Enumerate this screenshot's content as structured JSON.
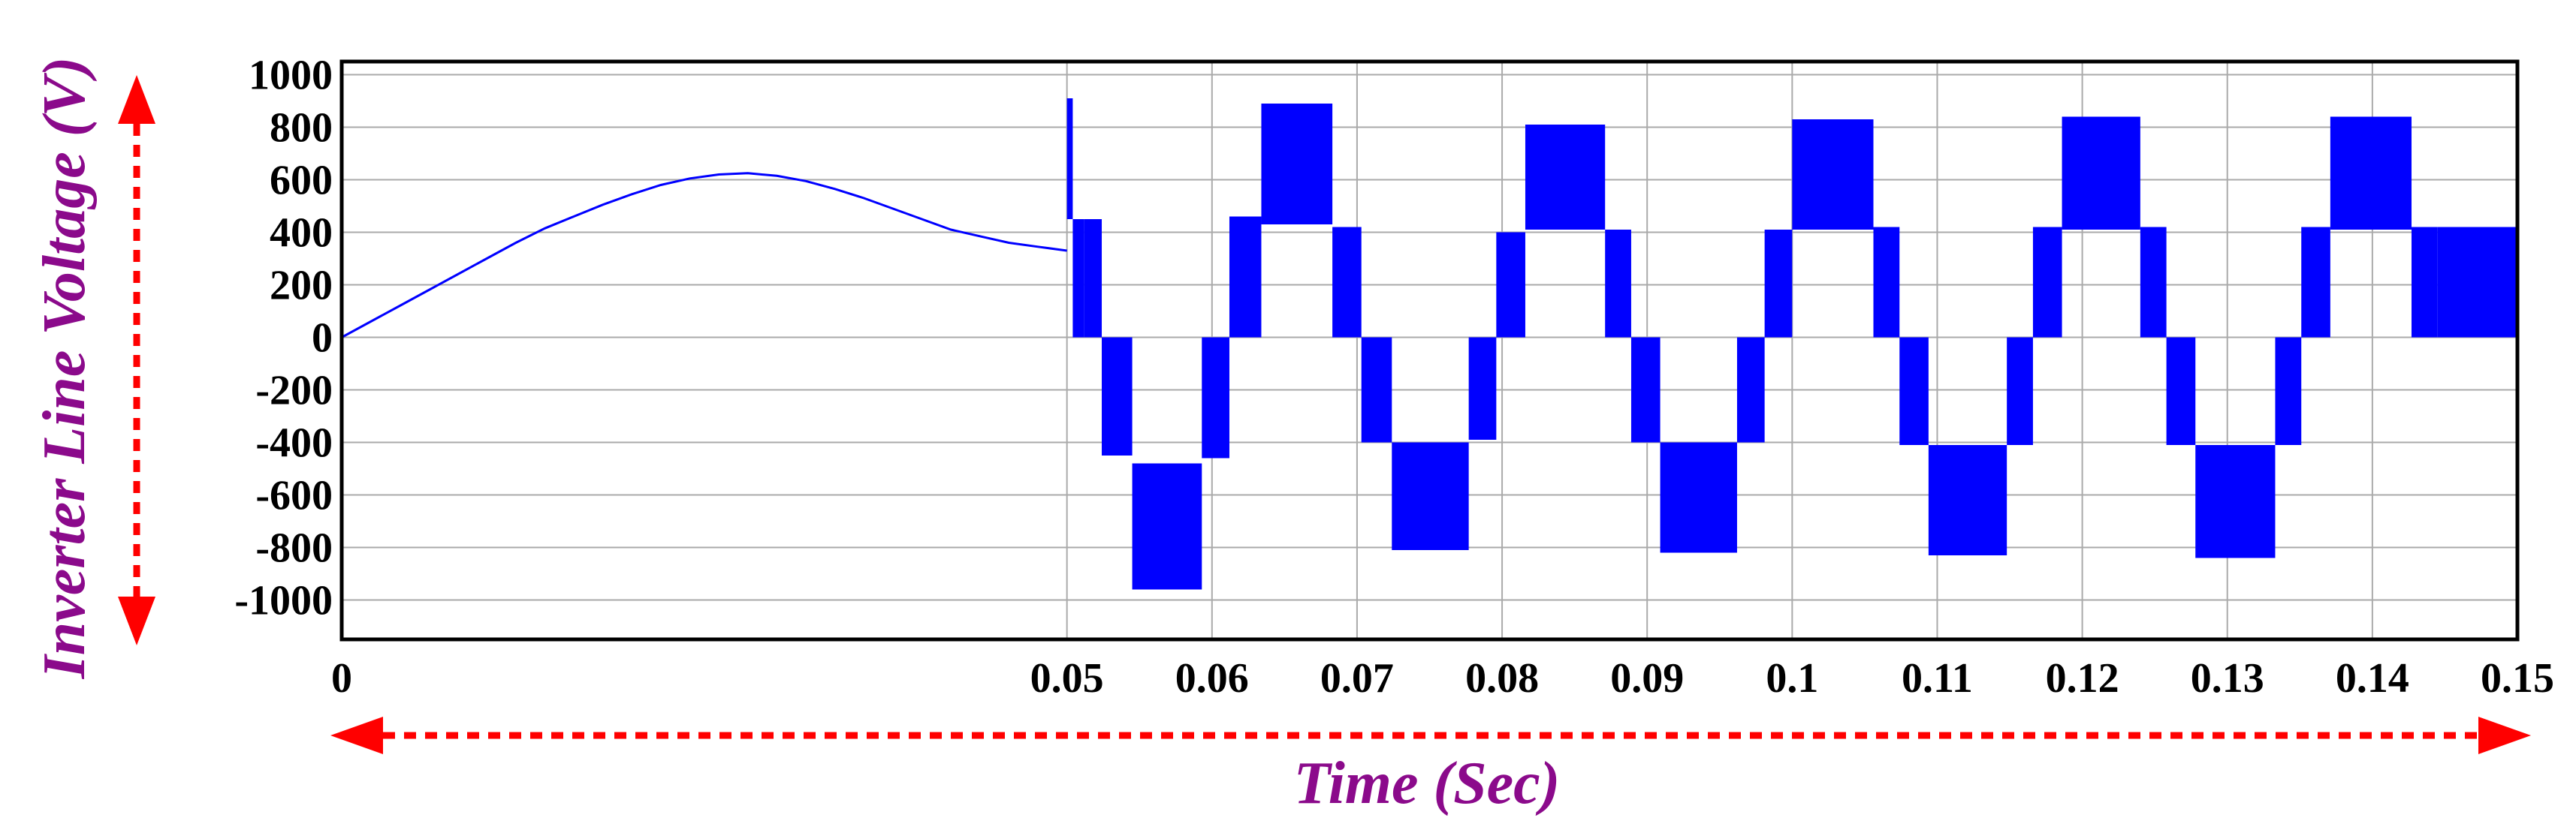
{
  "chart_data": {
    "type": "line",
    "title": "",
    "xlabel": "Time (Sec)",
    "ylabel": "Inverter Line Voltage (V)",
    "xlim": [
      0,
      0.15
    ],
    "ylim": [
      -1150,
      1050
    ],
    "x_ticks": [
      "0",
      "0.05",
      "0.06",
      "0.07",
      "0.08",
      "0.09",
      "0.1",
      "0.11",
      "0.12",
      "0.13",
      "0.14",
      "0.15"
    ],
    "x_tick_values": [
      0,
      0.05,
      0.06,
      0.07,
      0.08,
      0.09,
      0.1,
      0.11,
      0.12,
      0.13,
      0.14,
      0.15
    ],
    "y_ticks": [
      "1000",
      "800",
      "600",
      "400",
      "200",
      "0",
      "-200",
      "-400",
      "-600",
      "-800",
      "-1000"
    ],
    "y_tick_values": [
      1000,
      800,
      600,
      400,
      200,
      0,
      -200,
      -400,
      -600,
      -800,
      -1000
    ],
    "grid": true,
    "series": [
      {
        "color": "#0000ff",
        "startup_curve": {
          "x": [
            0,
            0.002,
            0.004,
            0.006,
            0.008,
            0.01,
            0.012,
            0.014,
            0.016,
            0.018,
            0.02,
            0.022,
            0.024,
            0.026,
            0.028,
            0.03,
            0.032,
            0.034,
            0.036,
            0.038,
            0.04,
            0.042,
            0.044,
            0.046,
            0.048,
            0.05
          ],
          "y": [
            0,
            60,
            120,
            180,
            240,
            300,
            360,
            415,
            460,
            505,
            545,
            580,
            605,
            620,
            625,
            615,
            595,
            565,
            530,
            490,
            450,
            410,
            385,
            360,
            345,
            330
          ]
        },
        "pwm_blocks": [
          {
            "x_start": 0.05,
            "x_end": 0.0504,
            "y_low": 450,
            "y_high": 910
          },
          {
            "x_start": 0.0504,
            "x_end": 0.0512,
            "y_low": 0,
            "y_high": 450
          },
          {
            "x_start": 0.0512,
            "x_end": 0.0524,
            "y_low": 0,
            "y_high": 450
          },
          {
            "x_start": 0.0524,
            "x_end": 0.0545,
            "y_low": -450,
            "y_high": 0
          },
          {
            "x_start": 0.0545,
            "x_end": 0.0593,
            "y_low": -960,
            "y_high": -480
          },
          {
            "x_start": 0.0593,
            "x_end": 0.0612,
            "y_low": -460,
            "y_high": 0
          },
          {
            "x_start": 0.0612,
            "x_end": 0.0634,
            "y_low": 0,
            "y_high": 460
          },
          {
            "x_start": 0.0634,
            "x_end": 0.0683,
            "y_low": 430,
            "y_high": 890
          },
          {
            "x_start": 0.0683,
            "x_end": 0.0703,
            "y_low": 0,
            "y_high": 420
          },
          {
            "x_start": 0.0703,
            "x_end": 0.0724,
            "y_low": -400,
            "y_high": 0
          },
          {
            "x_start": 0.0724,
            "x_end": 0.0777,
            "y_low": -810,
            "y_high": -400
          },
          {
            "x_start": 0.0777,
            "x_end": 0.0796,
            "y_low": -390,
            "y_high": 0
          },
          {
            "x_start": 0.0796,
            "x_end": 0.0816,
            "y_low": 0,
            "y_high": 400
          },
          {
            "x_start": 0.0816,
            "x_end": 0.0871,
            "y_low": 410,
            "y_high": 810
          },
          {
            "x_start": 0.0871,
            "x_end": 0.0889,
            "y_low": 0,
            "y_high": 410
          },
          {
            "x_start": 0.0889,
            "x_end": 0.0909,
            "y_low": -400,
            "y_high": 0
          },
          {
            "x_start": 0.0909,
            "x_end": 0.0962,
            "y_low": -820,
            "y_high": -400
          },
          {
            "x_start": 0.0962,
            "x_end": 0.0981,
            "y_low": -400,
            "y_high": 0
          },
          {
            "x_start": 0.0981,
            "x_end": 0.1,
            "y_low": 0,
            "y_high": 410
          },
          {
            "x_start": 0.1,
            "x_end": 0.1056,
            "y_low": 410,
            "y_high": 830
          },
          {
            "x_start": 0.1056,
            "x_end": 0.1074,
            "y_low": 0,
            "y_high": 420
          },
          {
            "x_start": 0.1074,
            "x_end": 0.1094,
            "y_low": -410,
            "y_high": 0
          },
          {
            "x_start": 0.1094,
            "x_end": 0.1148,
            "y_low": -830,
            "y_high": -410
          },
          {
            "x_start": 0.1148,
            "x_end": 0.1166,
            "y_low": -410,
            "y_high": 0
          },
          {
            "x_start": 0.1166,
            "x_end": 0.1186,
            "y_low": 0,
            "y_high": 420
          },
          {
            "x_start": 0.1186,
            "x_end": 0.124,
            "y_low": 410,
            "y_high": 840
          },
          {
            "x_start": 0.124,
            "x_end": 0.1258,
            "y_low": 0,
            "y_high": 420
          },
          {
            "x_start": 0.1258,
            "x_end": 0.1278,
            "y_low": -410,
            "y_high": 0
          },
          {
            "x_start": 0.1278,
            "x_end": 0.1333,
            "y_low": -840,
            "y_high": -410
          },
          {
            "x_start": 0.1333,
            "x_end": 0.1351,
            "y_low": -410,
            "y_high": 0
          },
          {
            "x_start": 0.1351,
            "x_end": 0.1371,
            "y_low": 0,
            "y_high": 420
          },
          {
            "x_start": 0.1371,
            "x_end": 0.1427,
            "y_low": 410,
            "y_high": 840
          },
          {
            "x_start": 0.1427,
            "x_end": 0.1445,
            "y_low": 0,
            "y_high": 420
          },
          {
            "x_start": 0.1445,
            "x_end": 0.15,
            "y_low": 0,
            "y_high": 420
          }
        ]
      }
    ]
  },
  "colors": {
    "signal": "#0000ff",
    "axis_title": "#8b0a8b",
    "arrow": "#ff0000",
    "grid": "#aaaaaa",
    "frame": "#000000"
  }
}
